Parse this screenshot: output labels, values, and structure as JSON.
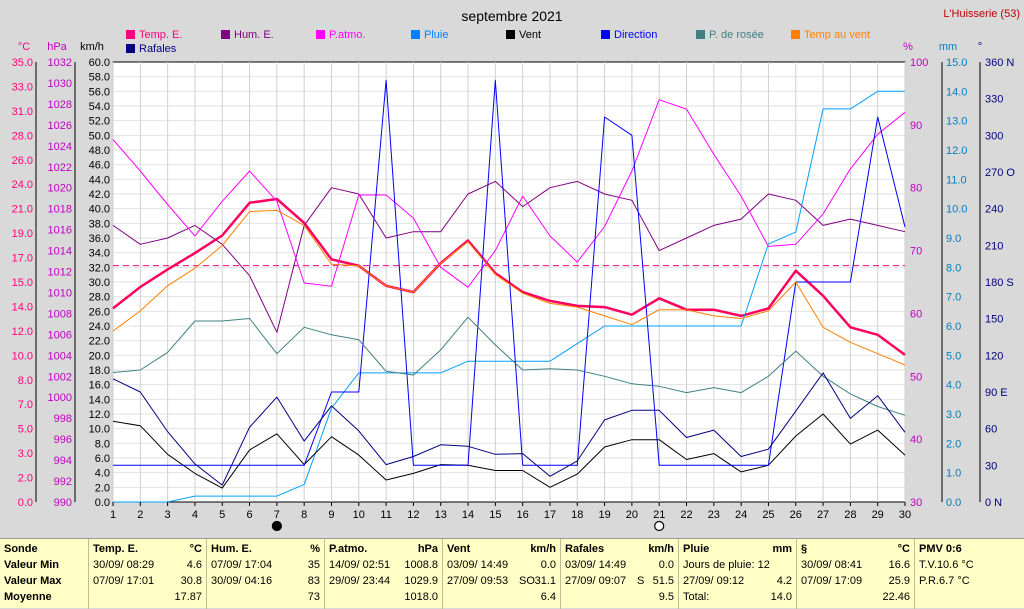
{
  "chart_data": {
    "type": "line",
    "title": "septembre 2021",
    "station": "L'Huisserie (53)",
    "x": [
      1,
      2,
      3,
      4,
      5,
      6,
      7,
      8,
      9,
      10,
      11,
      12,
      13,
      14,
      15,
      16,
      17,
      18,
      19,
      20,
      21,
      22,
      23,
      24,
      25,
      26,
      27,
      28,
      29,
      30
    ],
    "axes": {
      "temp": {
        "label": "°C",
        "range": [
          0,
          35
        ],
        "ticks": [
          "35.0",
          "33.0",
          "31.0",
          "28.0",
          "26.0",
          "24.0",
          "21.0",
          "19.0",
          "17.0",
          "15.0",
          "14.0",
          "12.0",
          "10.0",
          "8.0",
          "7.0",
          "5.0",
          "3.0",
          "2.0",
          "0.0"
        ],
        "color": "#ff0080"
      },
      "hpa": {
        "label": "hPa",
        "range": [
          990,
          1032
        ],
        "ticks": [
          "1032",
          "1030",
          "1028",
          "1026",
          "1024",
          "1022",
          "1020",
          "1018",
          "1016",
          "1014",
          "1012",
          "1010",
          "1008",
          "1006",
          "1004",
          "1002",
          "1000",
          "998",
          "996",
          "994",
          "992",
          "990"
        ],
        "color": "#c000c0"
      },
      "kmh": {
        "label": "km/h",
        "range": [
          0,
          60
        ],
        "ticks": [
          "60.0",
          "58.0",
          "56.0",
          "54.0",
          "52.0",
          "50.0",
          "48.0",
          "46.0",
          "44.0",
          "42.0",
          "40.0",
          "38.0",
          "36.0",
          "34.0",
          "32.0",
          "30.0",
          "28.0",
          "26.0",
          "24.0",
          "22.0",
          "20.0",
          "18.0",
          "16.0",
          "14.0",
          "12.0",
          "10.0",
          "8.0",
          "6.0",
          "4.0",
          "2.0",
          "0.0"
        ],
        "color": "#000000"
      },
      "hum": {
        "label": "%",
        "range": [
          30,
          100
        ],
        "ticks": [
          "100",
          "90",
          "80",
          "70",
          "60",
          "50",
          "40",
          "30"
        ],
        "color": "#c000c0"
      },
      "mm": {
        "label": "mm",
        "range": [
          0,
          15
        ],
        "ticks": [
          "15.0",
          "14.0",
          "13.0",
          "12.0",
          "11.0",
          "10.0",
          "9.0",
          "8.0",
          "7.0",
          "6.0",
          "5.0",
          "4.0",
          "3.0",
          "2.0",
          "1.0",
          "0.0"
        ],
        "color": "#0080c0"
      },
      "deg": {
        "label": "°",
        "range": [
          0,
          360
        ],
        "ticks": [
          "360 N",
          "330",
          "300",
          "270 O",
          "240",
          "210",
          "180 S",
          "150",
          "120",
          "90 E",
          "60",
          "30",
          "0 N"
        ],
        "color": "#000080"
      }
    },
    "series": [
      {
        "name": "Temp. E.",
        "color": "#ff0060",
        "axis": "temp",
        "width": 2.5,
        "values": [
          15.4,
          17.1,
          18.5,
          19.8,
          21.2,
          23.8,
          24.1,
          22.2,
          19.3,
          18.8,
          17.2,
          16.7,
          19.0,
          20.8,
          18.2,
          16.7,
          16.0,
          15.6,
          15.5,
          14.9,
          16.2,
          15.3,
          15.3,
          14.8,
          15.4,
          18.4,
          16.4,
          13.9,
          13.3,
          11.7
        ]
      },
      {
        "name": "Hum. E.",
        "color": "#800080",
        "axis": "hum",
        "values": [
          74,
          71,
          72,
          74,
          71,
          66,
          57,
          74,
          80,
          79,
          72,
          73,
          73,
          79,
          81,
          77,
          80,
          81,
          79,
          78,
          70,
          72,
          74,
          75,
          79,
          78,
          74,
          75,
          74,
          73
        ]
      },
      {
        "name": "P.atmo.",
        "color": "#ff00ff",
        "axis": "hpa",
        "values": [
          1024.6,
          1021.6,
          1018.4,
          1015.4,
          1018.7,
          1021.6,
          1018.7,
          1010.9,
          1010.6,
          1019.3,
          1019.3,
          1017.1,
          1012.4,
          1010.5,
          1014.0,
          1019.2,
          1015.4,
          1012.9,
          1016.3,
          1021.6,
          1028.4,
          1027.5,
          1023.2,
          1019.2,
          1014.4,
          1014.6,
          1017.5,
          1021.8,
          1025.1,
          1027.2
        ]
      },
      {
        "name": "Pluie",
        "color": "#00a0ff",
        "axis": "mm",
        "values": [
          0,
          0,
          0,
          0.2,
          0.2,
          0.2,
          0.2,
          0.6,
          3.2,
          4.4,
          4.4,
          4.4,
          4.4,
          4.8,
          4.8,
          4.8,
          4.8,
          5.4,
          6.0,
          6.0,
          6.0,
          6.0,
          6.0,
          6.0,
          8.8,
          9.2,
          13.4,
          13.4,
          14.0,
          14.0
        ]
      },
      {
        "name": "Vent",
        "color": "#000000",
        "axis": "kmh",
        "values": [
          11.0,
          10.4,
          6.5,
          3.9,
          1.9,
          7.1,
          9.3,
          5.1,
          8.9,
          6.4,
          3.0,
          3.9,
          5.1,
          5.0,
          4.3,
          4.3,
          2.0,
          3.8,
          7.5,
          8.5,
          8.5,
          5.8,
          6.6,
          4.1,
          5.0,
          9.0,
          12.0,
          7.9,
          9.8,
          6.4
        ]
      },
      {
        "name": "Direction",
        "color": "#0000ff",
        "axis": "deg",
        "values": [
          30,
          30,
          30,
          30,
          30,
          30,
          30,
          30,
          90,
          90,
          345,
          30,
          30,
          30,
          345,
          30,
          30,
          30,
          315,
          300,
          30,
          30,
          30,
          30,
          30,
          180,
          180,
          180,
          315,
          225
        ]
      },
      {
        "name": "P. de rosée",
        "color": "#408080",
        "axis": "temp",
        "values": [
          10.3,
          10.5,
          11.9,
          14.4,
          14.4,
          14.6,
          11.8,
          13.9,
          13.3,
          12.9,
          10.4,
          10.1,
          12.1,
          14.7,
          12.5,
          10.5,
          10.6,
          10.5,
          10.0,
          9.4,
          9.2,
          8.7,
          9.1,
          8.7,
          10.0,
          12.0,
          10.0,
          8.6,
          7.6,
          6.9
        ]
      },
      {
        "name": "Temp au vent",
        "color": "#ff8000",
        "axis": "temp",
        "values": [
          13.6,
          15.2,
          17.2,
          18.6,
          20.4,
          23.1,
          23.2,
          22.0,
          18.9,
          18.8,
          17.2,
          16.7,
          19.0,
          20.7,
          18.1,
          16.6,
          15.8,
          15.5,
          14.8,
          14.1,
          15.3,
          15.3,
          14.8,
          14.6,
          15.2,
          17.5,
          13.9,
          12.7,
          11.8,
          10.9
        ]
      },
      {
        "name": "Rafales",
        "color": "#000080",
        "axis": "kmh",
        "values": [
          16.8,
          15.0,
          9.6,
          5.2,
          2.3,
          10.2,
          14.3,
          8.3,
          13.1,
          9.7,
          5.1,
          6.2,
          7.8,
          7.6,
          6.5,
          6.6,
          3.5,
          5.6,
          11.2,
          12.5,
          12.5,
          8.8,
          9.8,
          6.2,
          7.2,
          12.4,
          17.6,
          11.4,
          14.5,
          9.5
        ]
      }
    ],
    "reference_line": {
      "axis": "temp",
      "value": 18.8,
      "color": "#ff0080"
    },
    "legend": [
      {
        "name": "Temp. E.",
        "color": "#ff0080"
      },
      {
        "name": "Hum. E.",
        "color": "#800080"
      },
      {
        "name": "P.atmo.",
        "color": "#ff00ff"
      },
      {
        "name": "Pluie",
        "color": "#0080ff"
      },
      {
        "name": "Vent",
        "color": "#000000"
      },
      {
        "name": "Direction",
        "color": "#0000ff"
      },
      {
        "name": "P. de rosée",
        "color": "#408080"
      },
      {
        "name": "Temp au vent",
        "color": "#ff8000"
      },
      {
        "name": "Rafales",
        "color": "#000080"
      }
    ],
    "moon_markers": [
      {
        "day": 7,
        "phase": "new"
      },
      {
        "day": 21,
        "phase": "full"
      }
    ]
  },
  "summary": {
    "row_labels": [
      "Sonde",
      "Valeur Min",
      "Valeur Max",
      "Moyenne"
    ],
    "temp": {
      "title": "Temp. E.",
      "unit": "°C",
      "min_date": "30/09/ 08:29",
      "min_val": "4.6",
      "max_date": "07/09/ 17:01",
      "max_val": "30.8",
      "mean": "17.87"
    },
    "hum": {
      "title": "Hum. E.",
      "unit": "%",
      "min_date": "07/09/ 17:04",
      "min_val": "35",
      "max_date": "30/09/ 04:16",
      "max_val": "83",
      "mean": "73"
    },
    "patmo": {
      "title": "P.atmo.",
      "unit": "hPa",
      "min_date": "14/09/ 02:51",
      "min_val": "1008.8",
      "max_date": "29/09/ 23:44",
      "max_val": "1029.9",
      "mean": "1018.0"
    },
    "vent": {
      "title": "Vent",
      "unit": "km/h",
      "min_date": "03/09/ 14:49",
      "min_val": "0.0",
      "max_date": "27/09/ 09:53",
      "max_dir": "SO",
      "max_val": "31.1",
      "mean": "6.4"
    },
    "rafales": {
      "title": "Rafales",
      "unit": "km/h",
      "min_date": "03/09/ 14:49",
      "min_val": "0.0",
      "max_date": "27/09/ 09:07",
      "max_dir": "S",
      "max_val": "51.5",
      "mean": "9.5"
    },
    "pluie": {
      "title": "Pluie",
      "unit": "mm",
      "line1_label": "Jours de pluie: 12",
      "line2_date": "27/09/ 09:12",
      "line2_val": "4.2",
      "total_label": "Total:",
      "total_val": "14.0"
    },
    "section": {
      "title": "§",
      "unit": "°C",
      "min_date": "30/09/ 08:41",
      "min_val": "16.6",
      "max_date": "07/09/ 17:09",
      "max_val": "25.9",
      "mean": "22.46"
    },
    "pmv": {
      "title": "PMV 0:6",
      "line1": "T.V.10.6 °C",
      "line2": "P.R.6.7 °C"
    }
  }
}
